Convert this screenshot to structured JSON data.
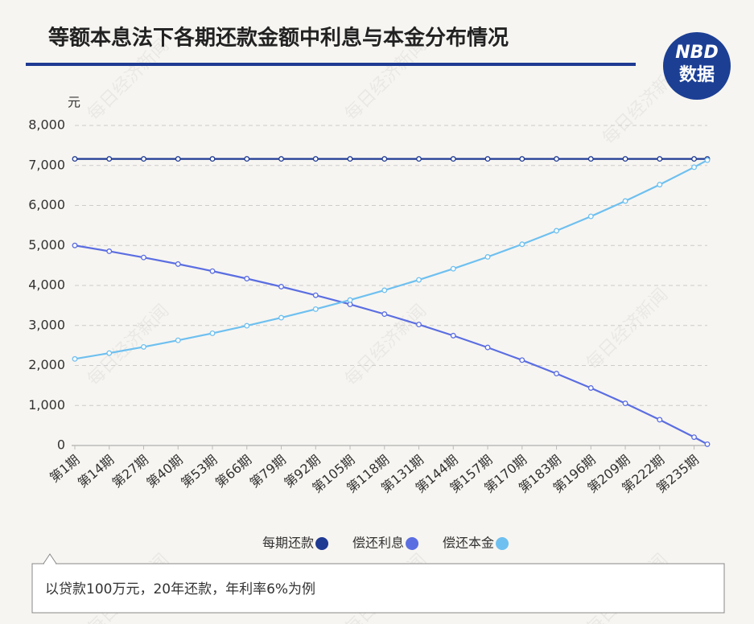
{
  "chart_data": {
    "type": "line",
    "title": "等额本息法下各期还款金额中利息与本金分布情况",
    "logo_top": "NBD",
    "logo_bottom": "数据",
    "watermark": "每日经济新闻",
    "y_label": "元",
    "note": "以贷款100万元，20年还款，年利率6%为例",
    "x": [
      1,
      14,
      27,
      40,
      53,
      66,
      79,
      92,
      105,
      118,
      131,
      144,
      157,
      170,
      183,
      196,
      209,
      222,
      235,
      240
    ],
    "xlim": [
      1,
      240
    ],
    "xticks": [
      {
        "value": 1,
        "label": "第1期"
      },
      {
        "value": 14,
        "label": "第14期"
      },
      {
        "value": 27,
        "label": "第27期"
      },
      {
        "value": 40,
        "label": "第40期"
      },
      {
        "value": 53,
        "label": "第53期"
      },
      {
        "value": 66,
        "label": "第66期"
      },
      {
        "value": 79,
        "label": "第79期"
      },
      {
        "value": 92,
        "label": "第92期"
      },
      {
        "value": 105,
        "label": "第105期"
      },
      {
        "value": 118,
        "label": "第118期"
      },
      {
        "value": 131,
        "label": "第131期"
      },
      {
        "value": 144,
        "label": "第144期"
      },
      {
        "value": 157,
        "label": "第157期"
      },
      {
        "value": 170,
        "label": "第170期"
      },
      {
        "value": 183,
        "label": "第183期"
      },
      {
        "value": 196,
        "label": "第196期"
      },
      {
        "value": 209,
        "label": "第209期"
      },
      {
        "value": 222,
        "label": "第222期"
      },
      {
        "value": 235,
        "label": "第235期"
      }
    ],
    "ylim": [
      0,
      8000
    ],
    "yticks": [
      0,
      {
        "value": 1000,
        "label": "1,000"
      },
      {
        "value": 2000,
        "label": "2,000"
      },
      {
        "value": 3000,
        "label": "3,000"
      },
      {
        "value": 4000,
        "label": "4,000"
      },
      {
        "value": 5000,
        "label": "5,000"
      },
      {
        "value": 6000,
        "label": "6,000"
      },
      {
        "value": 7000,
        "label": "7,000"
      },
      {
        "value": 8000,
        "label": "8,000"
      }
    ],
    "grid": true,
    "series": [
      {
        "name": "每期还款",
        "color": "#1f3a93",
        "values": [
          7164,
          7164,
          7164,
          7164,
          7164,
          7164,
          7164,
          7164,
          7164,
          7164,
          7164,
          7164,
          7164,
          7164,
          7164,
          7164,
          7164,
          7164,
          7164,
          7164
        ]
      },
      {
        "name": "偿还利息",
        "color": "#5b6ee1",
        "values": [
          5000,
          4855,
          4700,
          4535,
          4359,
          4171,
          3970,
          3756,
          3528,
          3284,
          3024,
          2746,
          2450,
          2134,
          1797,
          1437,
          1053,
          644,
          208,
          32
        ]
      },
      {
        "name": "偿还本金",
        "color": "#6ec0f0",
        "values": [
          2164,
          2309,
          2464,
          2629,
          2805,
          2993,
          3194,
          3408,
          3636,
          3880,
          4140,
          4418,
          4714,
          5030,
          5367,
          5727,
          6111,
          6520,
          6956,
          7132
        ]
      }
    ]
  }
}
